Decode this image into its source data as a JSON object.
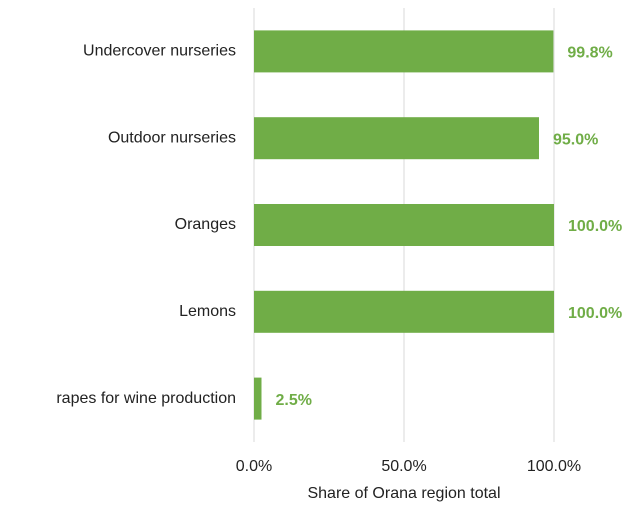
{
  "chart_data": {
    "type": "bar",
    "orientation": "horizontal",
    "x_label": "Share of Orana region total",
    "categories": [
      "Undercover nurseries",
      "Outdoor nurseries",
      "Oranges",
      "Lemons",
      "rapes for wine production"
    ],
    "values": [
      99.8,
      95.0,
      100.0,
      100.0,
      2.5
    ],
    "value_labels": [
      "99.8%",
      "95.0%",
      "100.0%",
      "100.0%",
      "2.5%"
    ],
    "color": "#70ad47",
    "xlim": [
      0,
      100
    ],
    "xticks": [
      {
        "value": 0,
        "label": "0.0%"
      },
      {
        "value": 50,
        "label": "50.0%"
      },
      {
        "value": 100,
        "label": "100.0%"
      }
    ],
    "grid": true
  }
}
